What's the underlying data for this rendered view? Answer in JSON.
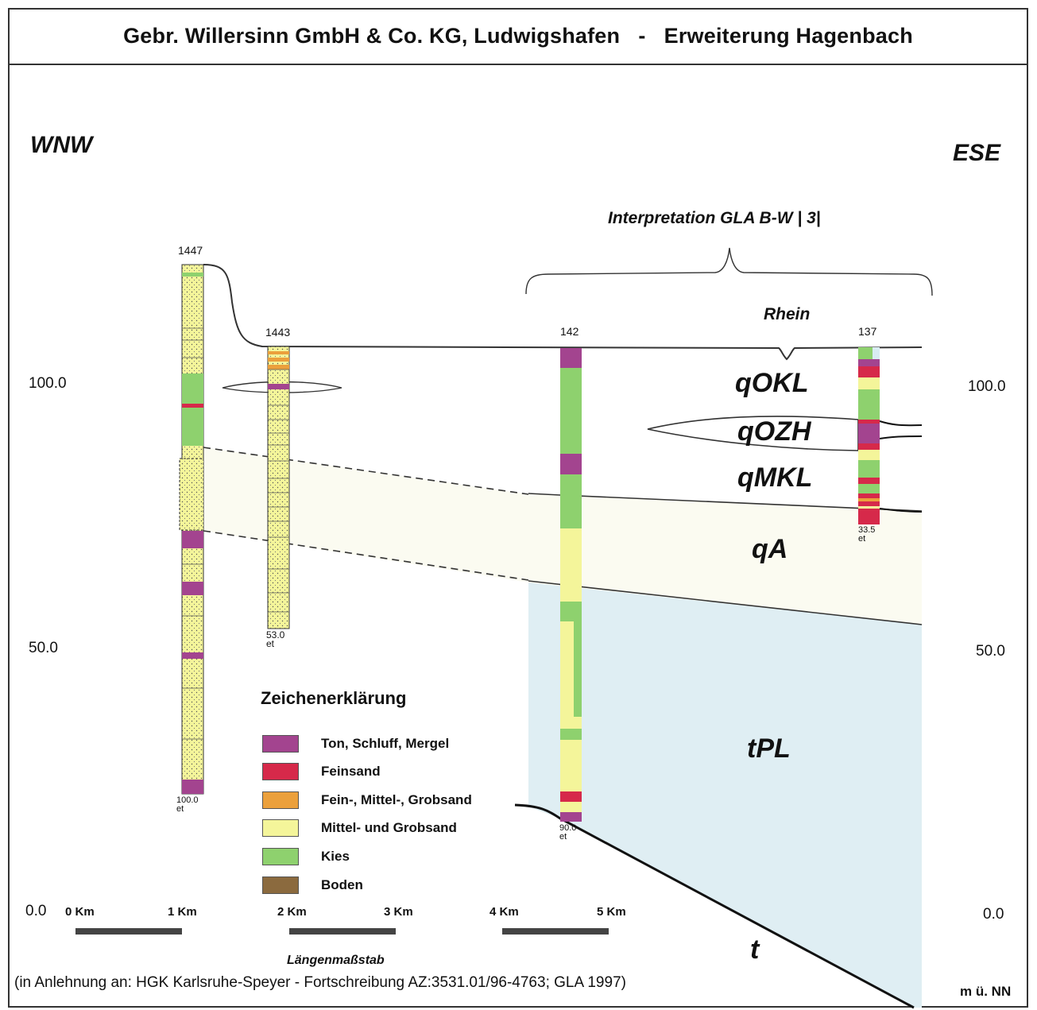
{
  "title": {
    "left": "Gebr. Willersinn GmbH & Co. KG, Ludwigshafen",
    "separator": "-",
    "right": "Erweiterung Hagenbach"
  },
  "directions": {
    "west": "WNW",
    "east": "ESE"
  },
  "interpretation_label": "Interpretation GLA  B-W  | 3|",
  "river_label": "Rhein",
  "elevation_axis": {
    "left_ticks": [
      "100.0",
      "50.0",
      "0.0"
    ],
    "right_ticks": [
      "100.0",
      "50.0",
      "0.0"
    ],
    "unit": "m ü. NN"
  },
  "boreholes": [
    {
      "id": "1447",
      "final_depth": "100.0",
      "final_note": "et"
    },
    {
      "id": "1443",
      "final_depth": "53.0",
      "final_note": "et"
    },
    {
      "id": "142",
      "final_depth": "90.0",
      "final_note": "et"
    },
    {
      "id": "137",
      "final_depth": "33.5",
      "final_note": "et"
    }
  ],
  "units": [
    "qOKL",
    "qOZH",
    "qMKL",
    "qA",
    "tPL",
    "t"
  ],
  "legend": {
    "title": "Zeichenerklärung",
    "items": [
      {
        "label": "Ton, Schluff, Mergel",
        "color": "#a3448f"
      },
      {
        "label": "Feinsand",
        "color": "#d6294a"
      },
      {
        "label": "Fein-, Mittel-, Grobsand",
        "color": "#eba03c"
      },
      {
        "label": "Mittel- und Grobsand",
        "color": "#f4f59a"
      },
      {
        "label": "Kies",
        "color": "#8ed16e"
      },
      {
        "label": "Boden",
        "color": "#8b6a3e"
      }
    ]
  },
  "scale_bar": {
    "ticks": [
      "0 Km",
      "1 Km",
      "2 Km",
      "3 Km",
      "4 Km",
      "5 Km"
    ],
    "label": "Längenmaßstab"
  },
  "source_note": "(in Anlehnung an: HGK Karlsruhe-Speyer - Fortschreibung AZ:3531.01/96-4763; GLA 1997)",
  "colors": {
    "clay": "#a3448f",
    "fine_sand": "#d6294a",
    "fine_medium_coarse_sand": "#eba03c",
    "medium_coarse_sand": "#f4f59a",
    "gravel": "#8ed16e",
    "soil": "#8b6a3e",
    "tertiary_fill": "#dfeef3"
  }
}
